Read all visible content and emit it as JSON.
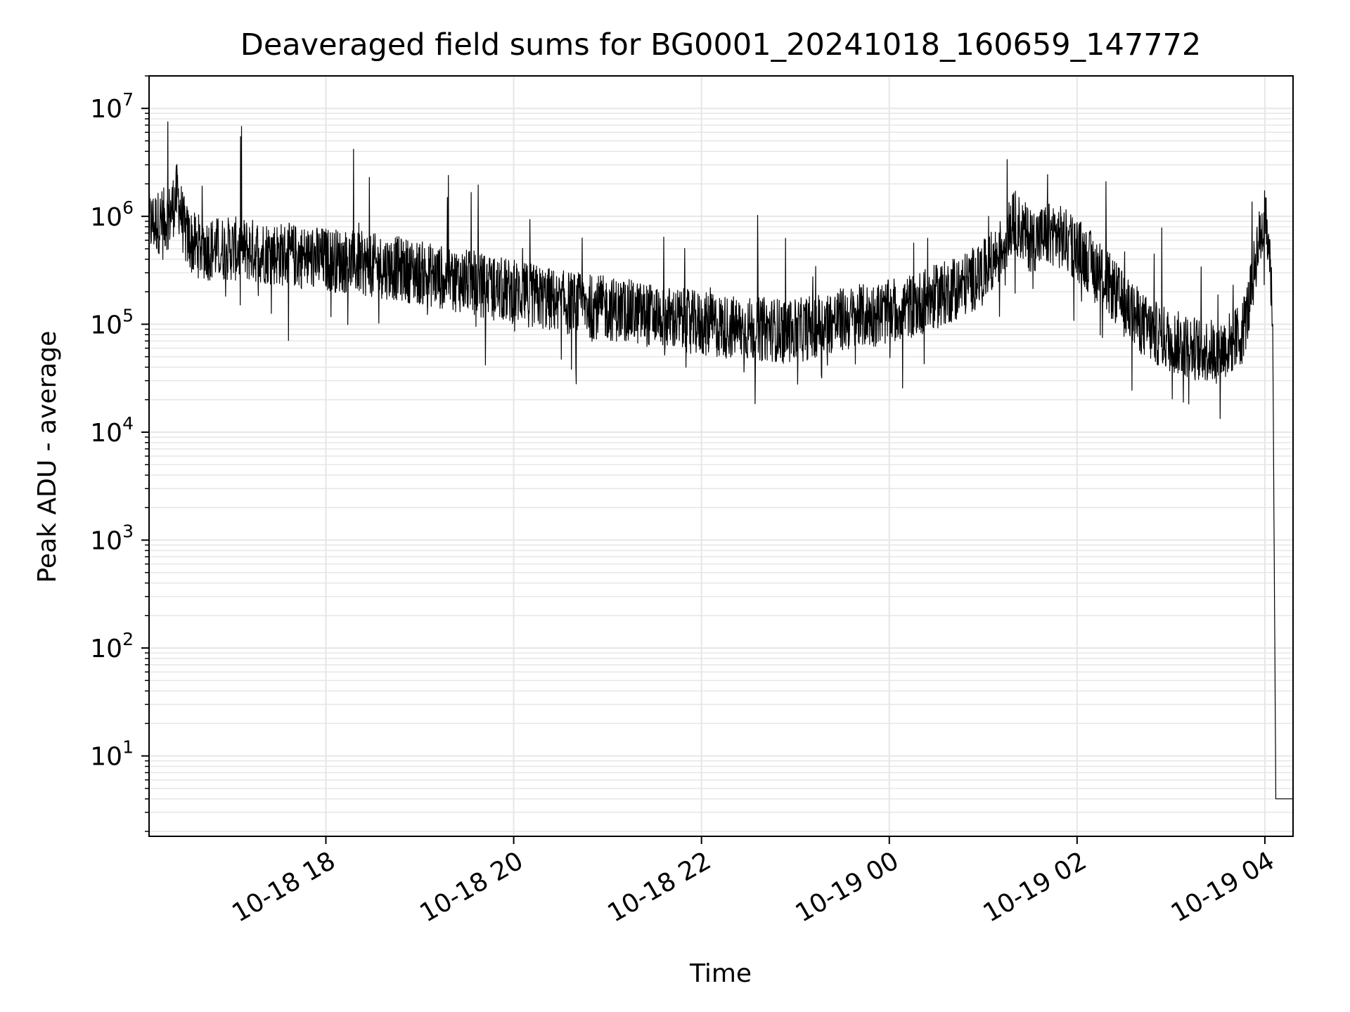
{
  "chart_data": {
    "type": "line",
    "title": "Deaveraged field sums for BG0001_20241018_160659_147772",
    "xlabel": "Time",
    "ylabel": "Peak ADU - average",
    "yscale": "log",
    "xlim": [
      "2024-10-18 16:07",
      "2024-10-19 04:18"
    ],
    "ylim": [
      1.8,
      20000000
    ],
    "grid": true,
    "line_color": "#000000",
    "grid_color": "#e6e6e6",
    "x_ticks": [
      {
        "value": "2024-10-18 18:00",
        "label": "10-18 18"
      },
      {
        "value": "2024-10-18 20:00",
        "label": "10-18 20"
      },
      {
        "value": "2024-10-18 22:00",
        "label": "10-18 22"
      },
      {
        "value": "2024-10-19 00:00",
        "label": "10-19 00"
      },
      {
        "value": "2024-10-19 02:00",
        "label": "10-19 02"
      },
      {
        "value": "2024-10-19 04:00",
        "label": "10-19 04"
      }
    ],
    "y_ticks": [
      {
        "value": 10,
        "base": "10",
        "exp": "1"
      },
      {
        "value": 100,
        "base": "10",
        "exp": "2"
      },
      {
        "value": 1000,
        "base": "10",
        "exp": "3"
      },
      {
        "value": 10000,
        "base": "10",
        "exp": "4"
      },
      {
        "value": 100000,
        "base": "10",
        "exp": "5"
      },
      {
        "value": 1000000,
        "base": "10",
        "exp": "6"
      },
      {
        "value": 10000000,
        "base": "10",
        "exp": "7"
      }
    ],
    "series": [
      {
        "x": [
          "2024-10-18 16:07",
          "2024-10-18 16:15",
          "2024-10-18 16:20",
          "2024-10-18 16:25",
          "2024-10-18 16:30",
          "2024-10-18 16:35",
          "2024-10-18 16:45",
          "2024-10-18 17:00",
          "2024-10-18 17:15",
          "2024-10-18 17:30",
          "2024-10-18 17:45",
          "2024-10-18 18:00",
          "2024-10-18 18:15",
          "2024-10-18 18:30",
          "2024-10-18 18:45",
          "2024-10-18 19:00",
          "2024-10-18 19:15",
          "2024-10-18 19:30",
          "2024-10-18 19:45",
          "2024-10-18 20:00",
          "2024-10-18 20:15",
          "2024-10-18 20:30",
          "2024-10-18 20:45",
          "2024-10-18 21:00",
          "2024-10-18 21:15",
          "2024-10-18 21:30",
          "2024-10-18 21:45",
          "2024-10-18 22:00",
          "2024-10-18 22:15",
          "2024-10-18 22:30",
          "2024-10-18 22:45",
          "2024-10-18 23:00",
          "2024-10-18 23:15",
          "2024-10-18 23:30",
          "2024-10-18 23:45",
          "2024-10-19 00:00",
          "2024-10-19 00:15",
          "2024-10-19 00:30",
          "2024-10-19 00:45",
          "2024-10-19 01:00",
          "2024-10-19 01:10",
          "2024-10-19 01:20",
          "2024-10-19 01:30",
          "2024-10-19 01:45",
          "2024-10-19 02:00",
          "2024-10-19 02:15",
          "2024-10-19 02:30",
          "2024-10-19 02:45",
          "2024-10-19 03:00",
          "2024-10-19 03:15",
          "2024-10-19 03:30",
          "2024-10-19 03:45",
          "2024-10-19 03:50",
          "2024-10-19 03:55",
          "2024-10-19 04:00",
          "2024-10-19 04:03",
          "2024-10-19 04:05",
          "2024-10-19 04:07",
          "2024-10-19 04:18"
        ],
        "y": [
          850000,
          900000,
          1000000,
          1600000,
          700000,
          550000,
          500000,
          500000,
          480000,
          450000,
          420000,
          400000,
          380000,
          350000,
          330000,
          300000,
          270000,
          250000,
          220000,
          200000,
          180000,
          160000,
          150000,
          140000,
          130000,
          120000,
          110000,
          100000,
          95000,
          90000,
          90000,
          85000,
          100000,
          110000,
          120000,
          130000,
          150000,
          180000,
          220000,
          300000,
          450000,
          900000,
          600000,
          700000,
          500000,
          300000,
          150000,
          90000,
          70000,
          60000,
          55000,
          80000,
          150000,
          500000,
          900000,
          500000,
          100000,
          4,
          4
        ],
        "noise": 0.3
      }
    ]
  }
}
